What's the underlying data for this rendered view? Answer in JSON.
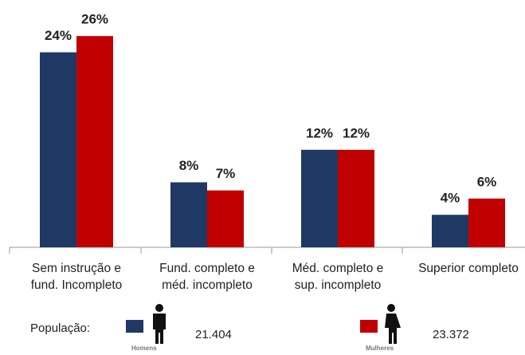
{
  "chart_data": {
    "type": "bar",
    "categories": [
      [
        "Sem instrução e",
        "fund. Incompleto"
      ],
      [
        "Fund. completo e",
        "méd. incompleto"
      ],
      [
        "Méd. completo e",
        "sup. incompleto"
      ],
      [
        "Superior completo"
      ]
    ],
    "series": [
      {
        "name": "Homens",
        "color": "#1f3864",
        "values": [
          24,
          8,
          12,
          4
        ],
        "value_labels": [
          "24%",
          "8%",
          "12%",
          "4%"
        ],
        "population": "21.404"
      },
      {
        "name": "Mulheres",
        "color": "#c00000",
        "values": [
          26,
          7,
          12,
          6
        ],
        "value_labels": [
          "26%",
          "7%",
          "12%",
          "6%"
        ],
        "population": "23.372"
      }
    ],
    "ylim": [
      0,
      27
    ],
    "legend_label": "População:"
  }
}
